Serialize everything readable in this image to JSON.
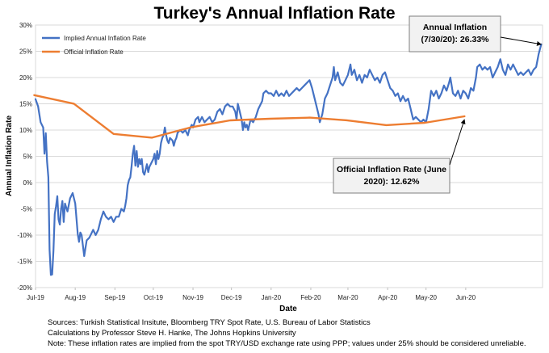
{
  "chart_data": {
    "type": "line",
    "title": "Turkey's Annual Inflation Rate",
    "xlabel": "Date",
    "ylabel": "Annual Inflation Rate",
    "ylim": [
      -20,
      30
    ],
    "yticks": [
      "-20%",
      "-15%",
      "-10%",
      "-5%",
      "0%",
      "5%",
      "10%",
      "15%",
      "20%",
      "25%",
      "30%"
    ],
    "yticks_values": [
      -20,
      -15,
      -10,
      -5,
      0,
      5,
      10,
      15,
      20,
      25,
      30
    ],
    "xlim": [
      "2019-07-01",
      "2020-07-31"
    ],
    "xticks": [
      {
        "date": "2019-07-01",
        "label": "Jul-19"
      },
      {
        "date": "2019-08-01",
        "label": "Aug-19"
      },
      {
        "date": "2019-09-01",
        "label": "Sep-19"
      },
      {
        "date": "2019-10-01",
        "label": "Oct-19"
      },
      {
        "date": "2019-11-01",
        "label": "Nov-19"
      },
      {
        "date": "2019-12-01",
        "label": "Dec-19"
      },
      {
        "date": "2020-01-01",
        "label": "Jan-20"
      },
      {
        "date": "2020-02-01",
        "label": "Feb-20"
      },
      {
        "date": "2020-03-01",
        "label": "Mar-20"
      },
      {
        "date": "2020-04-01",
        "label": "Apr-20"
      },
      {
        "date": "2020-05-01",
        "label": "May-20"
      },
      {
        "date": "2020-06-01",
        "label": "Jun-20"
      }
    ],
    "grid": true,
    "legend_position": "top-left",
    "series": [
      {
        "name": "Implied Annual Inflation Rate",
        "color": "#4472c4",
        "points": [
          [
            "2019-07-01",
            15.9
          ],
          [
            "2019-07-03",
            14.5
          ],
          [
            "2019-07-05",
            11.5
          ],
          [
            "2019-07-07",
            10.5
          ],
          [
            "2019-07-08",
            5.5
          ],
          [
            "2019-07-09",
            9.4
          ],
          [
            "2019-07-10",
            4.0
          ],
          [
            "2019-07-11",
            1.0
          ],
          [
            "2019-07-12",
            -12.8
          ],
          [
            "2019-07-13",
            -17.6
          ],
          [
            "2019-07-14",
            -17.5
          ],
          [
            "2019-07-15",
            -13.0
          ],
          [
            "2019-07-16",
            -6.0
          ],
          [
            "2019-07-17",
            -4.5
          ],
          [
            "2019-07-18",
            -2.6
          ],
          [
            "2019-07-19",
            -7.0
          ],
          [
            "2019-07-20",
            -8.0
          ],
          [
            "2019-07-21",
            -5.0
          ],
          [
            "2019-07-22",
            -3.5
          ],
          [
            "2019-07-23",
            -7.5
          ],
          [
            "2019-07-24",
            -4.0
          ],
          [
            "2019-07-26",
            -5.5
          ],
          [
            "2019-07-28",
            -3.0
          ],
          [
            "2019-07-30",
            -2.0
          ],
          [
            "2019-08-01",
            -4.0
          ],
          [
            "2019-08-03",
            -9.8
          ],
          [
            "2019-08-04",
            -11.3
          ],
          [
            "2019-08-05",
            -9.5
          ],
          [
            "2019-08-06",
            -10.0
          ],
          [
            "2019-08-07",
            -12.0
          ],
          [
            "2019-08-08",
            -14.0
          ],
          [
            "2019-08-09",
            -12.5
          ],
          [
            "2019-08-10",
            -11.0
          ],
          [
            "2019-08-12",
            -10.5
          ],
          [
            "2019-08-14",
            -9.5
          ],
          [
            "2019-08-15",
            -9.0
          ],
          [
            "2019-08-17",
            -10.0
          ],
          [
            "2019-08-19",
            -9.0
          ],
          [
            "2019-08-21",
            -7.0
          ],
          [
            "2019-08-23",
            -5.5
          ],
          [
            "2019-08-25",
            -6.5
          ],
          [
            "2019-08-27",
            -7.0
          ],
          [
            "2019-08-29",
            -6.5
          ],
          [
            "2019-08-31",
            -7.5
          ],
          [
            "2019-09-02",
            -6.5
          ],
          [
            "2019-09-04",
            -6.5
          ],
          [
            "2019-09-06",
            -5.0
          ],
          [
            "2019-09-08",
            -5.5
          ],
          [
            "2019-09-09",
            -4.5
          ],
          [
            "2019-09-10",
            -3.0
          ],
          [
            "2019-09-11",
            -0.5
          ],
          [
            "2019-09-12",
            0.5
          ],
          [
            "2019-09-13",
            1.0
          ],
          [
            "2019-09-14",
            3.0
          ],
          [
            "2019-09-15",
            5.5
          ],
          [
            "2019-09-16",
            7.0
          ],
          [
            "2019-09-17",
            3.2
          ],
          [
            "2019-09-18",
            6.0
          ],
          [
            "2019-09-19",
            3.0
          ],
          [
            "2019-09-20",
            4.5
          ],
          [
            "2019-09-21",
            3.5
          ],
          [
            "2019-09-22",
            4.5
          ],
          [
            "2019-09-23",
            2.0
          ],
          [
            "2019-09-24",
            1.5
          ],
          [
            "2019-09-25",
            2.5
          ],
          [
            "2019-09-26",
            3.5
          ],
          [
            "2019-09-27",
            2.0
          ],
          [
            "2019-09-28",
            3.0
          ],
          [
            "2019-09-30",
            4.0
          ],
          [
            "2019-10-01",
            4.5
          ],
          [
            "2019-10-02",
            5.5
          ],
          [
            "2019-10-03",
            3.5
          ],
          [
            "2019-10-04",
            6.0
          ],
          [
            "2019-10-05",
            4.5
          ],
          [
            "2019-10-06",
            5.5
          ],
          [
            "2019-10-07",
            7.5
          ],
          [
            "2019-10-08",
            8.5
          ],
          [
            "2019-10-09",
            9.0
          ],
          [
            "2019-10-10",
            10.5
          ],
          [
            "2019-10-11",
            9.0
          ],
          [
            "2019-10-12",
            8.0
          ],
          [
            "2019-10-13",
            7.5
          ],
          [
            "2019-10-14",
            8.5
          ],
          [
            "2019-10-16",
            8.0
          ],
          [
            "2019-10-17",
            7.0
          ],
          [
            "2019-10-18",
            8.0
          ],
          [
            "2019-10-19",
            8.5
          ],
          [
            "2019-10-20",
            9.5
          ],
          [
            "2019-10-22",
            10.0
          ],
          [
            "2019-10-24",
            9.5
          ],
          [
            "2019-10-26",
            10.0
          ],
          [
            "2019-10-28",
            9.0
          ],
          [
            "2019-10-29",
            10.0
          ],
          [
            "2019-10-31",
            11.0
          ],
          [
            "2019-11-01",
            10.5
          ],
          [
            "2019-11-03",
            12.0
          ],
          [
            "2019-11-05",
            12.5
          ],
          [
            "2019-11-06",
            11.5
          ],
          [
            "2019-11-08",
            12.5
          ],
          [
            "2019-11-10",
            11.5
          ],
          [
            "2019-11-12",
            12.0
          ],
          [
            "2019-11-14",
            12.5
          ],
          [
            "2019-11-16",
            11.5
          ],
          [
            "2019-11-18",
            12.0
          ],
          [
            "2019-11-20",
            13.5
          ],
          [
            "2019-11-22",
            14.0
          ],
          [
            "2019-11-24",
            13.0
          ],
          [
            "2019-11-26",
            14.5
          ],
          [
            "2019-11-28",
            15.0
          ],
          [
            "2019-11-30",
            14.5
          ],
          [
            "2019-12-02",
            14.5
          ],
          [
            "2019-12-04",
            13.5
          ],
          [
            "2019-12-05",
            12.0
          ],
          [
            "2019-12-06",
            15.0
          ],
          [
            "2019-12-07",
            14.0
          ],
          [
            "2019-12-09",
            12.0
          ],
          [
            "2019-12-10",
            10.0
          ],
          [
            "2019-12-11",
            11.5
          ],
          [
            "2019-12-12",
            10.5
          ],
          [
            "2019-12-13",
            11.0
          ],
          [
            "2019-12-14",
            10.0
          ],
          [
            "2019-12-16",
            12.0
          ],
          [
            "2019-12-18",
            11.5
          ],
          [
            "2019-12-20",
            12.5
          ],
          [
            "2019-12-22",
            14.0
          ],
          [
            "2019-12-24",
            15.0
          ],
          [
            "2019-12-25",
            15.5
          ],
          [
            "2019-12-26",
            17.0
          ],
          [
            "2019-12-28",
            17.5
          ],
          [
            "2019-12-30",
            17.0
          ],
          [
            "2020-01-01",
            17.0
          ],
          [
            "2020-01-03",
            16.5
          ],
          [
            "2020-01-05",
            17.5
          ],
          [
            "2020-01-07",
            16.5
          ],
          [
            "2020-01-09",
            17.0
          ],
          [
            "2020-01-11",
            16.5
          ],
          [
            "2020-01-13",
            17.5
          ],
          [
            "2020-01-15",
            16.5
          ],
          [
            "2020-01-17",
            17.0
          ],
          [
            "2020-01-19",
            17.5
          ],
          [
            "2020-01-21",
            18.0
          ],
          [
            "2020-01-23",
            17.5
          ],
          [
            "2020-01-25",
            18.0
          ],
          [
            "2020-01-27",
            18.5
          ],
          [
            "2020-01-29",
            19.0
          ],
          [
            "2020-01-31",
            19.5
          ],
          [
            "2020-02-02",
            18.0
          ],
          [
            "2020-02-04",
            16.0
          ],
          [
            "2020-02-06",
            14.0
          ],
          [
            "2020-02-07",
            13.0
          ],
          [
            "2020-02-08",
            11.5
          ],
          [
            "2020-02-10",
            13.0
          ],
          [
            "2020-02-12",
            16.0
          ],
          [
            "2020-02-14",
            17.0
          ],
          [
            "2020-02-16",
            18.5
          ],
          [
            "2020-02-18",
            20.0
          ],
          [
            "2020-02-19",
            22.0
          ],
          [
            "2020-02-20",
            19.5
          ],
          [
            "2020-02-22",
            21.0
          ],
          [
            "2020-02-24",
            19.0
          ],
          [
            "2020-02-26",
            18.5
          ],
          [
            "2020-02-28",
            19.5
          ],
          [
            "2020-03-01",
            20.5
          ],
          [
            "2020-03-03",
            22.5
          ],
          [
            "2020-03-04",
            20.5
          ],
          [
            "2020-03-06",
            21.5
          ],
          [
            "2020-03-08",
            19.5
          ],
          [
            "2020-03-10",
            20.5
          ],
          [
            "2020-03-12",
            19.0
          ],
          [
            "2020-03-14",
            20.5
          ],
          [
            "2020-03-16",
            20.0
          ],
          [
            "2020-03-18",
            21.5
          ],
          [
            "2020-03-20",
            20.5
          ],
          [
            "2020-03-22",
            19.5
          ],
          [
            "2020-03-24",
            20.0
          ],
          [
            "2020-03-26",
            19.0
          ],
          [
            "2020-03-28",
            20.5
          ],
          [
            "2020-03-30",
            21.0
          ],
          [
            "2020-04-01",
            19.5
          ],
          [
            "2020-04-03",
            18.0
          ],
          [
            "2020-04-05",
            17.5
          ],
          [
            "2020-04-07",
            16.5
          ],
          [
            "2020-04-09",
            17.0
          ],
          [
            "2020-04-11",
            15.5
          ],
          [
            "2020-04-13",
            16.5
          ],
          [
            "2020-04-15",
            15.5
          ],
          [
            "2020-04-17",
            16.0
          ],
          [
            "2020-04-19",
            14.0
          ],
          [
            "2020-04-20",
            13.0
          ],
          [
            "2020-04-21",
            12.0
          ],
          [
            "2020-04-23",
            12.5
          ],
          [
            "2020-04-25",
            12.0
          ],
          [
            "2020-04-27",
            11.5
          ],
          [
            "2020-04-29",
            12.0
          ],
          [
            "2020-05-01",
            11.5
          ],
          [
            "2020-05-03",
            14.0
          ],
          [
            "2020-05-05",
            17.5
          ],
          [
            "2020-05-07",
            16.5
          ],
          [
            "2020-05-09",
            17.5
          ],
          [
            "2020-05-11",
            16.0
          ],
          [
            "2020-05-13",
            17.0
          ],
          [
            "2020-05-15",
            18.5
          ],
          [
            "2020-05-17",
            17.5
          ],
          [
            "2020-05-19",
            19.0
          ],
          [
            "2020-05-20",
            20.0
          ],
          [
            "2020-05-22",
            17.0
          ],
          [
            "2020-05-24",
            16.5
          ],
          [
            "2020-05-26",
            17.5
          ],
          [
            "2020-05-28",
            16.0
          ],
          [
            "2020-05-30",
            17.5
          ],
          [
            "2020-06-01",
            17.0
          ],
          [
            "2020-06-03",
            16.0
          ],
          [
            "2020-06-05",
            18.0
          ],
          [
            "2020-06-07",
            17.5
          ],
          [
            "2020-06-09",
            20.0
          ],
          [
            "2020-06-10",
            22.0
          ],
          [
            "2020-06-12",
            22.5
          ],
          [
            "2020-06-14",
            21.5
          ],
          [
            "2020-06-16",
            22.0
          ],
          [
            "2020-06-18",
            21.5
          ],
          [
            "2020-06-20",
            22.0
          ],
          [
            "2020-06-22",
            20.0
          ],
          [
            "2020-06-24",
            21.0
          ],
          [
            "2020-06-26",
            22.0
          ],
          [
            "2020-06-28",
            23.5
          ],
          [
            "2020-06-30",
            21.5
          ],
          [
            "2020-07-02",
            20.5
          ],
          [
            "2020-07-04",
            22.5
          ],
          [
            "2020-07-06",
            21.5
          ],
          [
            "2020-07-08",
            22.5
          ],
          [
            "2020-07-10",
            21.5
          ],
          [
            "2020-07-12",
            20.5
          ],
          [
            "2020-07-14",
            21.0
          ],
          [
            "2020-07-16",
            20.5
          ],
          [
            "2020-07-18",
            21.0
          ],
          [
            "2020-07-20",
            21.5
          ],
          [
            "2020-07-22",
            20.5
          ],
          [
            "2020-07-24",
            21.5
          ],
          [
            "2020-07-26",
            22.0
          ],
          [
            "2020-07-28",
            24.5
          ],
          [
            "2020-07-30",
            26.33
          ]
        ]
      },
      {
        "name": "Official Inflation Rate",
        "color": "#ed7d31",
        "points": [
          [
            "2019-06-30",
            16.65
          ],
          [
            "2019-07-31",
            15.01
          ],
          [
            "2019-08-31",
            9.26
          ],
          [
            "2019-09-30",
            8.55
          ],
          [
            "2019-10-31",
            10.56
          ],
          [
            "2019-11-30",
            11.84
          ],
          [
            "2019-12-31",
            12.15
          ],
          [
            "2020-01-31",
            12.37
          ],
          [
            "2020-02-29",
            11.86
          ],
          [
            "2020-03-31",
            10.94
          ],
          [
            "2020-04-30",
            11.39
          ],
          [
            "2020-05-31",
            12.62
          ]
        ]
      }
    ],
    "annotations": [
      {
        "id": "implied-callout",
        "lines": [
          "Annual Inflation",
          "(7/30/20): 26.33%"
        ],
        "points_to": [
          "2020-07-30",
          26.33
        ]
      },
      {
        "id": "official-callout",
        "lines": [
          "Official Inflation Rate (June",
          "2020): 12.62%"
        ],
        "points_to": [
          "2020-05-31",
          12.62
        ]
      }
    ]
  },
  "footnotes": [
    "Sources: Turkish Statistical Insitute, Bloomberg TRY Spot Rate, U.S. Bureau of Labor Statistics",
    "Calculations by Professor Steve H. Hanke, The Johns Hopkins University",
    "Note: These inflation rates are implied from the spot TRY/USD exchange rate using PPP; values under 25% should be considered unreliable."
  ]
}
